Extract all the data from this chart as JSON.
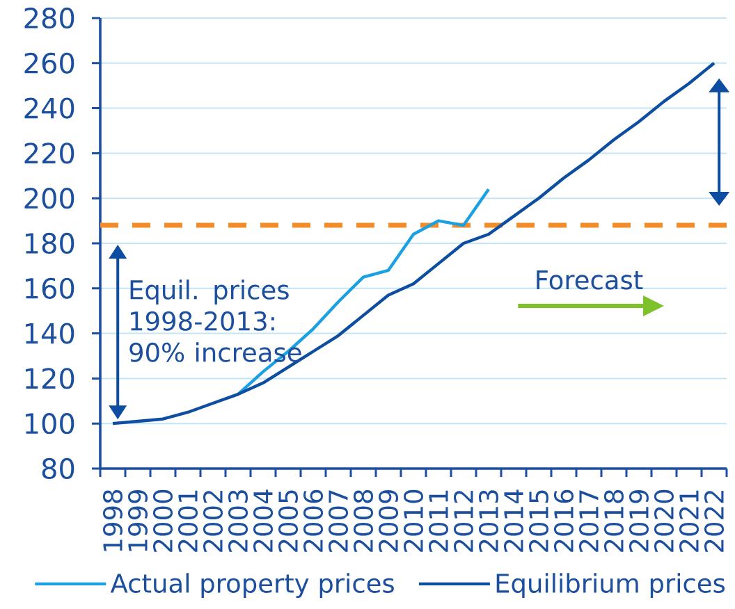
{
  "chart_data": {
    "type": "line",
    "categories": [
      "1998",
      "1999",
      "2000",
      "2001",
      "2002",
      "2003",
      "2004",
      "2005",
      "2006",
      "2007",
      "2008",
      "2009",
      "2010",
      "2011",
      "2012",
      "2013",
      "2014",
      "2015",
      "2016",
      "2017",
      "2018",
      "2019",
      "2020",
      "2021",
      "2022"
    ],
    "series": [
      {
        "name": "Actual property prices",
        "color": "#1ba1e2",
        "values": [
          null,
          null,
          null,
          null,
          null,
          113,
          123,
          132,
          142,
          154,
          165,
          168,
          184,
          190,
          188,
          204,
          null,
          null,
          null,
          null,
          null,
          null,
          null,
          null,
          null
        ]
      },
      {
        "name": "Equilibrium prices",
        "color": "#0d4ea0",
        "values": [
          100,
          101,
          102,
          105,
          109,
          113,
          118,
          125,
          132,
          139,
          148,
          157,
          162,
          171,
          180,
          184,
          192,
          200,
          209,
          217,
          226,
          234,
          243,
          251,
          260
        ]
      }
    ],
    "ylim": [
      80,
      280
    ],
    "yticks": [
      80,
      100,
      120,
      140,
      160,
      180,
      200,
      220,
      240,
      260,
      280
    ],
    "grid": "y",
    "legend": "bottom",
    "marker": "none",
    "line_style": "solid",
    "ref_lines": [
      {
        "axis": "y",
        "value": 188,
        "color": "#f28c28",
        "line_style": "dashed"
      }
    ],
    "annotations": [
      "Equil. prices 1998-2013: 90% increase",
      "Forecast"
    ]
  }
}
